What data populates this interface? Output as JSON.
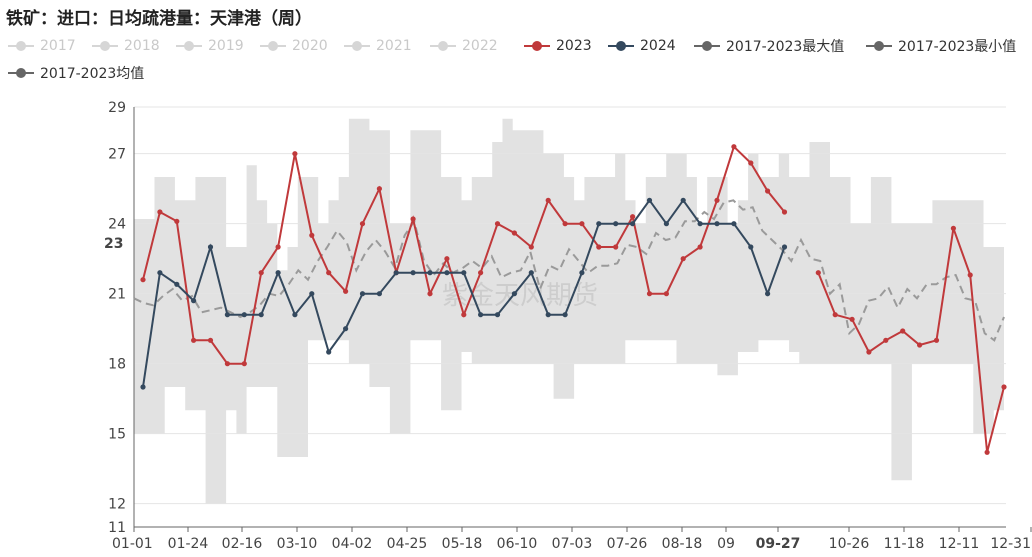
{
  "title": "铁矿：进口：日均疏港量：天津港（周）",
  "watermark": "紫金天风期货",
  "legend": [
    {
      "label": "2017",
      "color": "#d6d6d6",
      "active": false
    },
    {
      "label": "2018",
      "color": "#d6d6d6",
      "active": false
    },
    {
      "label": "2019",
      "color": "#d6d6d6",
      "active": false
    },
    {
      "label": "2020",
      "color": "#d6d6d6",
      "active": false
    },
    {
      "label": "2021",
      "color": "#d6d6d6",
      "active": false
    },
    {
      "label": "2022",
      "color": "#d6d6d6",
      "active": false
    },
    {
      "label": "2023",
      "color": "#c0393b",
      "active": true
    },
    {
      "label": "2024",
      "color": "#34495e",
      "active": true
    },
    {
      "label": "2017-2023最大值",
      "color": "#666666",
      "active": true
    },
    {
      "label": "2017-2023最小值",
      "color": "#666666",
      "active": true
    },
    {
      "label": "2017-2023均值",
      "color": "#666666",
      "active": true
    }
  ],
  "chart_data": {
    "type": "line",
    "xlabel": "",
    "ylabel": "",
    "ylim": [
      11,
      29
    ],
    "y_ticks": [
      11,
      12,
      15,
      18,
      21,
      24,
      27,
      29
    ],
    "x_ticks": [
      "01-01",
      "01-24",
      "02-16",
      "03-10",
      "04-02",
      "04-25",
      "05-18",
      "06-10",
      "07-03",
      "07-26",
      "08-18",
      "09",
      "09-27",
      "10-26",
      "11-18",
      "12-11",
      "12-31"
    ],
    "highlight": {
      "x_label": "09-27",
      "y_label": "23"
    },
    "grid": true,
    "legend_position": "top",
    "series": [
      {
        "name": "2023",
        "color": "#c0393b",
        "values": [
          21.6,
          24.5,
          24.1,
          19.0,
          19.0,
          18.0,
          18.0,
          21.9,
          23.0,
          27.0,
          23.5,
          21.9,
          21.1,
          24.0,
          25.5,
          21.9,
          24.2,
          21.0,
          22.5,
          20.1,
          21.9,
          24.0,
          23.6,
          23.0,
          25.0,
          24.0,
          24.0,
          23.0,
          23.0,
          24.3,
          21.0,
          21.0,
          22.5,
          23.0,
          25.0,
          27.3,
          26.6,
          25.4,
          24.5,
          null,
          21.9,
          20.1,
          19.9,
          18.5,
          19.0,
          19.4,
          18.8,
          19.0,
          23.8,
          21.8,
          14.2,
          17.0
        ]
      },
      {
        "name": "2024",
        "color": "#34495e",
        "values": [
          17.0,
          21.9,
          21.4,
          20.7,
          23.0,
          20.1,
          20.1,
          20.1,
          21.9,
          20.1,
          21.0,
          18.5,
          19.5,
          21.0,
          21.0,
          21.9,
          21.9,
          21.9,
          21.9,
          21.9,
          20.1,
          20.1,
          21.0,
          21.9,
          20.1,
          20.1,
          21.9,
          24.0,
          24.0,
          24.0,
          25.0,
          24.0,
          25.0,
          24.0,
          24.0,
          24.0,
          23.0,
          21.0,
          23.0
        ]
      },
      {
        "name": "2017-2023均值",
        "color": "#9a9a9a",
        "values": [
          20.8,
          20.6,
          20.5,
          20.9,
          21.2,
          20.7,
          20.9,
          20.2,
          20.3,
          20.4,
          20.2,
          20.0,
          20.2,
          20.5,
          21.0,
          20.9,
          21.4,
          22.0,
          21.6,
          22.4,
          23.0,
          23.7,
          23.2,
          22.0,
          22.8,
          23.3,
          22.8,
          22.1,
          23.5,
          24.1,
          22.4,
          21.8,
          22.3,
          21.9,
          22.1,
          22.4,
          22.1,
          22.6,
          21.7,
          21.9,
          22.0,
          22.8,
          21.2,
          22.2,
          22.0,
          22.9,
          22.4,
          21.9,
          22.2,
          22.2,
          22.3,
          23.1,
          23.0,
          22.7,
          23.6,
          23.3,
          23.4,
          24.1,
          24.1,
          24.5,
          24.2,
          24.9,
          25.0,
          24.6,
          24.7,
          23.7,
          23.3,
          22.9,
          22.4,
          23.3,
          22.5,
          22.4,
          21.0,
          21.4,
          19.3,
          19.7,
          20.7,
          20.8,
          21.3,
          20.4,
          21.2,
          20.8,
          21.4,
          21.4,
          21.7,
          21.8,
          20.8,
          20.7,
          19.3,
          19.0,
          20.0
        ]
      },
      {
        "name": "2017-2023最大值",
        "color": "#e2e2e2",
        "values": [
          24.2,
          24.2,
          26.0,
          26.0,
          25.0,
          25.0,
          26.0,
          26.0,
          26.0,
          23.0,
          23.0,
          26.5,
          25.0,
          24.0,
          22.0,
          23.0,
          26.0,
          26.0,
          24.0,
          25.0,
          26.0,
          28.5,
          28.5,
          28.0,
          28.0,
          24.0,
          24.0,
          28.0,
          28.0,
          28.0,
          26.0,
          26.0,
          25.0,
          26.0,
          26.0,
          27.5,
          28.5,
          28.0,
          28.0,
          28.0,
          27.0,
          27.0,
          26.0,
          25.0,
          26.0,
          26.0,
          26.0,
          27.0,
          25.0,
          24.0,
          26.0,
          26.0,
          27.0,
          27.0,
          26.0,
          24.0,
          26.0,
          26.0,
          24.0,
          25.0,
          27.0,
          26.0,
          26.0,
          27.0,
          26.0,
          26.0,
          27.5,
          27.5,
          26.0,
          26.0,
          24.0,
          24.0,
          26.0,
          26.0,
          24.0,
          24.0,
          24.0,
          24.0,
          25.0,
          25.0,
          25.0,
          25.0,
          25.0,
          23.0,
          23.0
        ]
      },
      {
        "name": "2017-2023最小值",
        "color": "#e2e2e2",
        "values": [
          15.0,
          15.0,
          15.0,
          17.0,
          17.0,
          16.0,
          16.0,
          12.0,
          12.0,
          16.0,
          15.0,
          17.0,
          17.0,
          17.0,
          14.0,
          14.0,
          14.0,
          19.0,
          19.0,
          19.0,
          19.0,
          18.0,
          18.0,
          17.0,
          17.0,
          15.0,
          15.0,
          19.0,
          19.0,
          19.0,
          16.0,
          16.0,
          18.5,
          18.0,
          18.0,
          18.0,
          18.0,
          18.0,
          18.0,
          18.0,
          18.0,
          16.5,
          16.5,
          18.0,
          18.0,
          18.0,
          18.0,
          18.0,
          19.0,
          19.0,
          19.0,
          19.0,
          19.0,
          18.0,
          18.0,
          18.0,
          18.0,
          17.5,
          17.5,
          18.5,
          18.5,
          19.0,
          19.0,
          19.0,
          18.5,
          18.0,
          18.0,
          18.0,
          18.0,
          18.0,
          18.0,
          18.0,
          18.0,
          18.0,
          13.0,
          13.0,
          18.0,
          18.0,
          18.0,
          18.0,
          18.0,
          18.0,
          15.0,
          15.0,
          16.0,
          16.0,
          16.0,
          14.5,
          14.5,
          15.0,
          15.0
        ]
      }
    ]
  }
}
